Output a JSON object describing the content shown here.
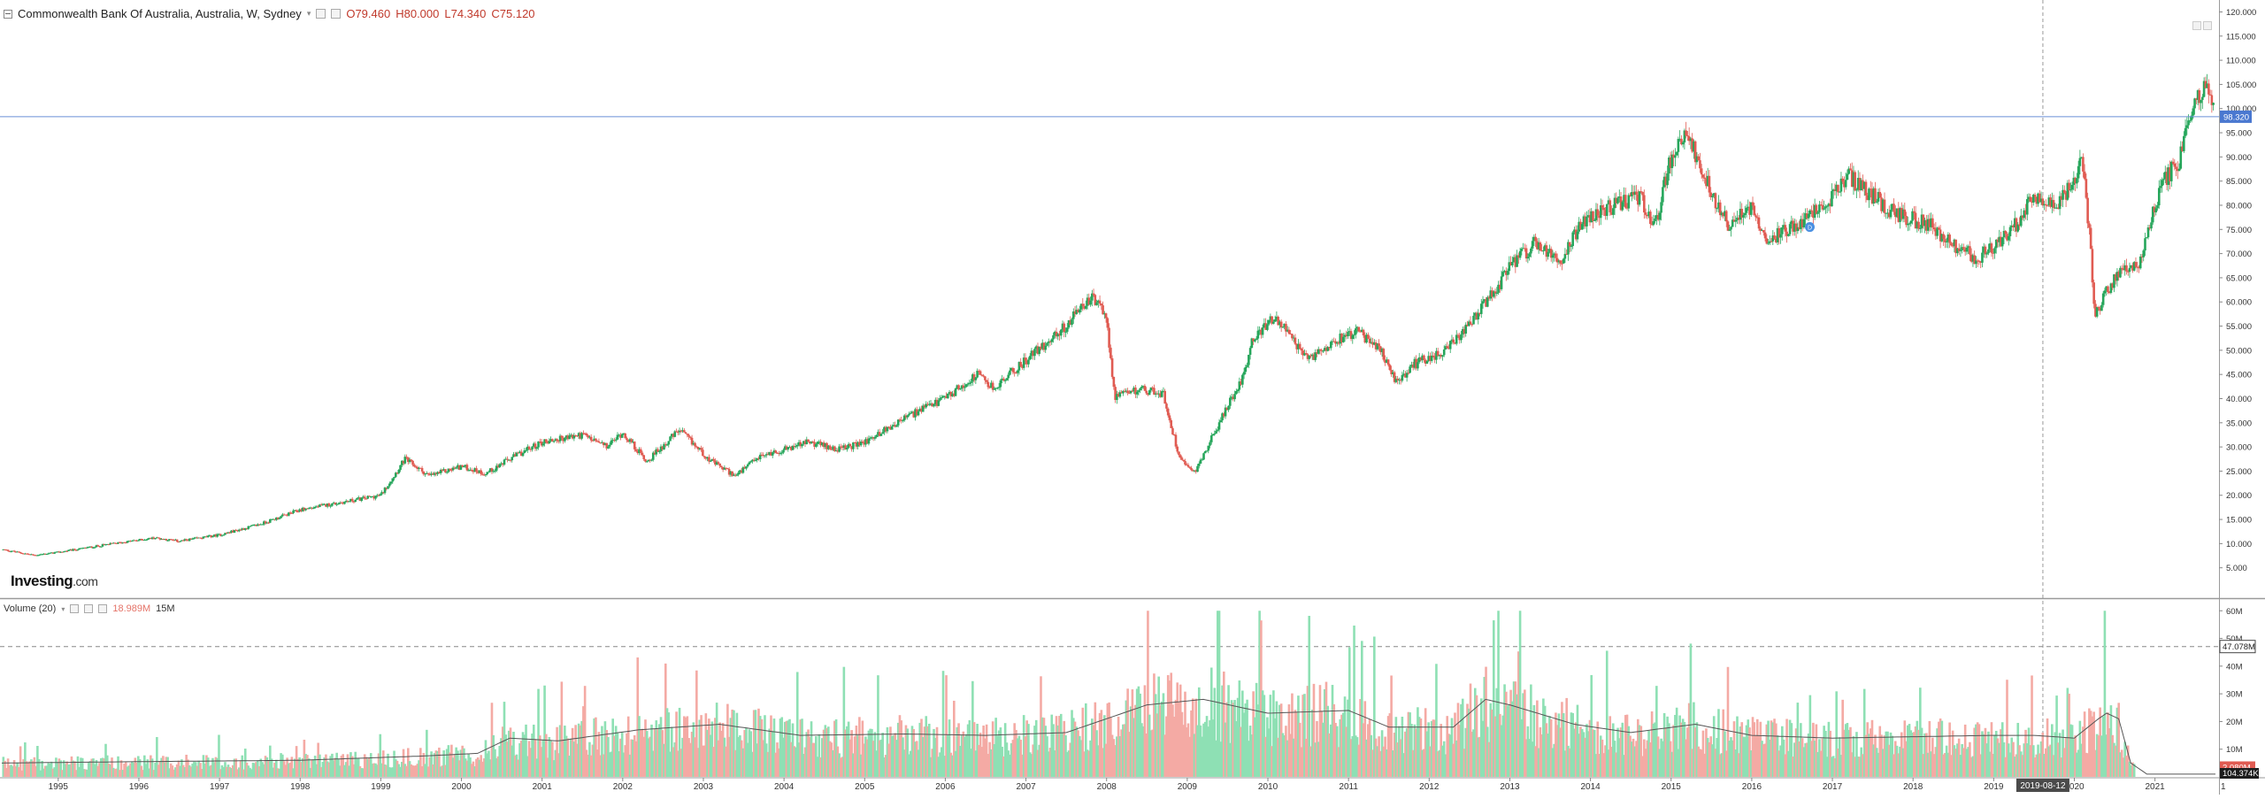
{
  "legend": {
    "title": "Commonwealth Bank Of Australia, Australia, W, Sydney",
    "open": "O79.460",
    "high": "H80.000",
    "low": "L74.340",
    "close": "C75.120"
  },
  "volume_legend": {
    "label": "Volume (20)",
    "value": "18.989M",
    "extra": "15M"
  },
  "watermark": {
    "brand": "Investing",
    "suffix": ".com"
  },
  "price_axis": {
    "ticks": [
      "120.000",
      "115.000",
      "110.000",
      "105.000",
      "100.000",
      "95.000",
      "90.000",
      "85.000",
      "80.000",
      "75.000",
      "70.000",
      "65.000",
      "60.000",
      "55.000",
      "50.000",
      "45.000",
      "40.000",
      "35.000",
      "30.000",
      "25.000",
      "20.000",
      "15.000",
      "10.000",
      "5.000"
    ],
    "current_label": "98.320",
    "current_value": 98.32
  },
  "volume_axis": {
    "ticks": [
      "60M",
      "50M",
      "40M",
      "30M",
      "20M",
      "10M"
    ],
    "ma_label": "47.078M",
    "ma_value": 47.078,
    "last_label": "2.080M",
    "last2_label": "104.374K"
  },
  "time_axis": {
    "years": [
      "1995",
      "1996",
      "1997",
      "1998",
      "1999",
      "2000",
      "2001",
      "2002",
      "2003",
      "2004",
      "2005",
      "2006",
      "2007",
      "2008",
      "2009",
      "2010",
      "2011",
      "2012",
      "2013",
      "2014",
      "2015",
      "2016",
      "2017",
      "2018",
      "2019",
      "2020",
      "2021"
    ],
    "crosshair_label": "2019-08-12",
    "edge_label": "1"
  },
  "colors": {
    "up": "#26a65b",
    "down": "#e05b52",
    "vol_up": "#8ee0b4",
    "vol_down": "#f4aaa4",
    "ma": "#555555",
    "price_line": "#6a8fd8",
    "price_tag": "#4a78d0",
    "vol_tag": "#e05b52"
  },
  "chart_data": {
    "type": "candlestick",
    "interval": "W",
    "x_range": [
      1994.3,
      2021.75
    ],
    "ylim": [
      0,
      121
    ],
    "volume_ylim": [
      0,
      62
    ],
    "price_anchors": [
      [
        1994.3,
        8.8
      ],
      [
        1994.7,
        7.6
      ],
      [
        1995.0,
        8.2
      ],
      [
        1995.6,
        9.8
      ],
      [
        1996.2,
        11.2
      ],
      [
        1996.5,
        10.5
      ],
      [
        1997.0,
        11.8
      ],
      [
        1997.5,
        14.0
      ],
      [
        1998.0,
        17.0
      ],
      [
        1998.5,
        18.5
      ],
      [
        1999.0,
        20.0
      ],
      [
        1999.3,
        27.5
      ],
      [
        1999.6,
        24.0
      ],
      [
        2000.0,
        26.0
      ],
      [
        2000.3,
        24.5
      ],
      [
        2000.6,
        27.5
      ],
      [
        2001.0,
        31.0
      ],
      [
        2001.5,
        32.5
      ],
      [
        2001.8,
        30.0
      ],
      [
        2002.0,
        33.0
      ],
      [
        2002.3,
        27.0
      ],
      [
        2002.7,
        33.5
      ],
      [
        2003.1,
        27.0
      ],
      [
        2003.4,
        24.0
      ],
      [
        2003.7,
        28.0
      ],
      [
        2004.0,
        29.5
      ],
      [
        2004.3,
        31.0
      ],
      [
        2004.7,
        29.5
      ],
      [
        2005.0,
        31.0
      ],
      [
        2005.5,
        36.0
      ],
      [
        2006.0,
        40.0
      ],
      [
        2006.4,
        45.0
      ],
      [
        2006.6,
        42.0
      ],
      [
        2007.0,
        48.0
      ],
      [
        2007.5,
        55.0
      ],
      [
        2007.8,
        61.0
      ],
      [
        2008.0,
        57.0
      ],
      [
        2008.1,
        40.0
      ],
      [
        2008.4,
        42.0
      ],
      [
        2008.7,
        41.0
      ],
      [
        2008.9,
        28.0
      ],
      [
        2009.1,
        25.0
      ],
      [
        2009.4,
        35.0
      ],
      [
        2009.7,
        45.0
      ],
      [
        2009.8,
        52.0
      ],
      [
        2010.1,
        57.0
      ],
      [
        2010.3,
        52.0
      ],
      [
        2010.5,
        48.0
      ],
      [
        2010.8,
        52.0
      ],
      [
        2011.1,
        54.0
      ],
      [
        2011.4,
        50.0
      ],
      [
        2011.6,
        43.0
      ],
      [
        2011.8,
        47.0
      ],
      [
        2012.2,
        50.0
      ],
      [
        2012.5,
        55.0
      ],
      [
        2012.8,
        62.0
      ],
      [
        2013.0,
        67.0
      ],
      [
        2013.3,
        72.0
      ],
      [
        2013.6,
        68.0
      ],
      [
        2013.9,
        77.0
      ],
      [
        2014.3,
        80.0
      ],
      [
        2014.6,
        82.0
      ],
      [
        2014.8,
        76.0
      ],
      [
        2015.0,
        90.0
      ],
      [
        2015.2,
        95.0
      ],
      [
        2015.4,
        86.0
      ],
      [
        2015.7,
        76.0
      ],
      [
        2016.0,
        80.0
      ],
      [
        2016.2,
        73.0
      ],
      [
        2016.6,
        76.0
      ],
      [
        2016.9,
        80.0
      ],
      [
        2017.2,
        86.0
      ],
      [
        2017.5,
        82.0
      ],
      [
        2017.8,
        78.0
      ],
      [
        2018.2,
        76.0
      ],
      [
        2018.5,
        72.0
      ],
      [
        2018.8,
        69.0
      ],
      [
        2019.2,
        74.0
      ],
      [
        2019.5,
        82.0
      ],
      [
        2019.8,
        80.0
      ],
      [
        2020.1,
        89.0
      ],
      [
        2020.2,
        72.0
      ],
      [
        2020.25,
        57.0
      ],
      [
        2020.4,
        62.0
      ],
      [
        2020.6,
        67.0
      ],
      [
        2020.8,
        68.0
      ],
      [
        2020.95,
        77.0
      ],
      [
        2021.1,
        85.0
      ],
      [
        2021.3,
        89.0
      ],
      [
        2021.5,
        102.0
      ],
      [
        2021.65,
        104.0
      ],
      [
        2021.75,
        98.3
      ]
    ],
    "volume_ma_anchors": [
      [
        1994.3,
        5.0
      ],
      [
        1996.0,
        5.5
      ],
      [
        1998.0,
        6.0
      ],
      [
        1999.5,
        7.5
      ],
      [
        2000.2,
        8.5
      ],
      [
        2000.6,
        14.0
      ],
      [
        2001.2,
        13.0
      ],
      [
        2002.2,
        17.0
      ],
      [
        2003.2,
        19.0
      ],
      [
        2004.2,
        15.0
      ],
      [
        2005.5,
        15.5
      ],
      [
        2006.5,
        15.0
      ],
      [
        2007.5,
        16.0
      ],
      [
        2008.5,
        26.0
      ],
      [
        2009.2,
        28.0
      ],
      [
        2010.0,
        23.0
      ],
      [
        2011.0,
        24.0
      ],
      [
        2011.5,
        18.0
      ],
      [
        2012.3,
        18.0
      ],
      [
        2012.7,
        28.0
      ],
      [
        2013.0,
        26.0
      ],
      [
        2013.8,
        19.0
      ],
      [
        2014.5,
        16.0
      ],
      [
        2015.3,
        19.0
      ],
      [
        2016.0,
        15.0
      ],
      [
        2017.0,
        14.0
      ],
      [
        2018.0,
        14.5
      ],
      [
        2019.0,
        15.0
      ],
      [
        2019.5,
        15.0
      ],
      [
        2020.0,
        14.0
      ],
      [
        2020.3,
        21.0
      ],
      [
        2020.4,
        23.0
      ],
      [
        2020.55,
        21.0
      ],
      [
        2020.7,
        5.0
      ],
      [
        2020.9,
        1.0
      ],
      [
        2021.75,
        1.0
      ]
    ],
    "last_candle": {
      "open": 79.46,
      "high": 80.0,
      "low": 74.34,
      "close": 75.12
    },
    "current_price": 98.32,
    "volume_ma_level": 47.078,
    "last_volume": 2.08
  }
}
